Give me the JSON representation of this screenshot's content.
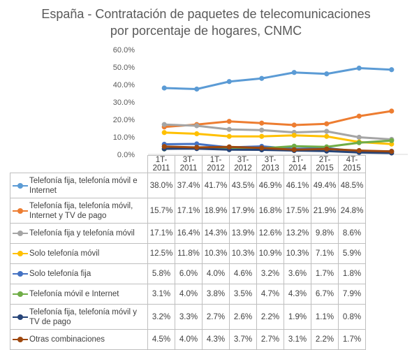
{
  "chart_data": {
    "type": "line",
    "title": [
      "España - Contratación de paquetes de telecomunicaciones",
      "por porcentaje de hogares, CNMC"
    ],
    "categories": [
      "1T-2011",
      "3T-2011",
      "1T-2012",
      "3T-2012",
      "3T-2013",
      "1T-2014",
      "2T-2015",
      "4T-2015"
    ],
    "y_ticks": [
      "0.0%",
      "10.0%",
      "20.0%",
      "30.0%",
      "40.0%",
      "50.0%",
      "60.0%"
    ],
    "ylim": [
      0,
      60
    ],
    "grid": false,
    "legend": "table-below",
    "series": [
      {
        "name": "Telefonía fija, telefonía móvil e Internet",
        "color": "#5B9BD5",
        "values": [
          38.0,
          37.4,
          41.7,
          43.5,
          46.9,
          46.1,
          49.4,
          48.5
        ],
        "labels": [
          "38.0%",
          "37.4%",
          "41.7%",
          "43.5%",
          "46.9%",
          "46.1%",
          "49.4%",
          "48.5%"
        ]
      },
      {
        "name": "Telefonía fija, telefonía móvil, Internet y TV de pago",
        "color": "#ED7D31",
        "values": [
          15.7,
          17.1,
          18.9,
          17.9,
          16.8,
          17.5,
          21.9,
          24.8
        ],
        "labels": [
          "15.7%",
          "17.1%",
          "18.9%",
          "17.9%",
          "16.8%",
          "17.5%",
          "21.9%",
          "24.8%"
        ]
      },
      {
        "name": "Telefonía fija y telefonía móvil",
        "color": "#A5A5A5",
        "values": [
          17.1,
          16.4,
          14.3,
          13.9,
          12.6,
          13.2,
          9.8,
          8.6
        ],
        "labels": [
          "17.1%",
          "16.4%",
          "14.3%",
          "13.9%",
          "12.6%",
          "13.2%",
          "9.8%",
          "8.6%"
        ]
      },
      {
        "name": "Solo telefonía móvil",
        "color": "#FFC000",
        "values": [
          12.5,
          11.8,
          10.3,
          10.3,
          10.9,
          10.3,
          7.1,
          5.9
        ],
        "labels": [
          "12.5%",
          "11.8%",
          "10.3%",
          "10.3%",
          "10.9%",
          "10.3%",
          "7.1%",
          "5.9%"
        ]
      },
      {
        "name": "Solo telefonía fija",
        "color": "#4472C4",
        "values": [
          5.8,
          6.0,
          4.0,
          4.6,
          3.2,
          3.6,
          1.7,
          1.8
        ],
        "labels": [
          "5.8%",
          "6.0%",
          "4.0%",
          "4.6%",
          "3.2%",
          "3.6%",
          "1.7%",
          "1.8%"
        ]
      },
      {
        "name": "Telefonía móvil e Internet",
        "color": "#70AD47",
        "values": [
          3.1,
          4.0,
          3.8,
          3.5,
          4.7,
          4.3,
          6.7,
          7.9
        ],
        "labels": [
          "3.1%",
          "4.0%",
          "3.8%",
          "3.5%",
          "4.7%",
          "4.3%",
          "6.7%",
          "7.9%"
        ]
      },
      {
        "name": "Telefonía fija, telefonía móvil y TV de pago",
        "color": "#264478",
        "values": [
          3.2,
          3.3,
          2.7,
          2.6,
          2.2,
          1.9,
          1.1,
          0.8
        ],
        "labels": [
          "3.2%",
          "3.3%",
          "2.7%",
          "2.6%",
          "2.2%",
          "1.9%",
          "1.1%",
          "0.8%"
        ]
      },
      {
        "name": "Otras combinaciones",
        "color": "#9E480E",
        "values": [
          4.5,
          4.0,
          4.3,
          3.7,
          2.7,
          3.1,
          2.2,
          1.7
        ],
        "labels": [
          "4.5%",
          "4.0%",
          "4.3%",
          "3.7%",
          "2.7%",
          "3.1%",
          "2.2%",
          "1.7%"
        ]
      }
    ]
  }
}
